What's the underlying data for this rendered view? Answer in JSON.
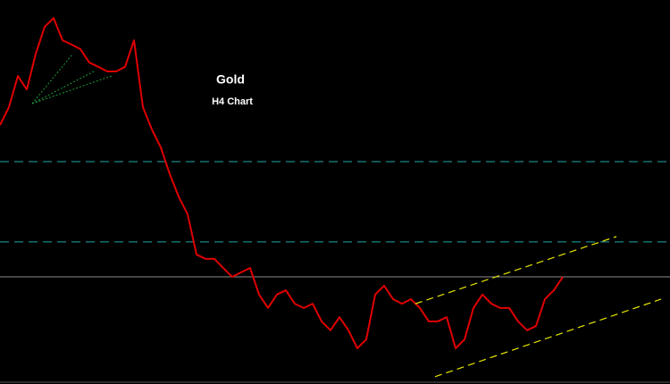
{
  "chart_data": {
    "type": "line",
    "title": "Gold",
    "subtitle": "H4 Chart",
    "color": "#e00000",
    "values": [
      67.4,
      72.1,
      80.2,
      76.7,
      86.0,
      93.0,
      95.3,
      89.5,
      88.4,
      87.2,
      83.7,
      82.6,
      81.4,
      81.4,
      82.6,
      89.5,
      72.1,
      66.3,
      61.6,
      54.7,
      48.8,
      44.2,
      33.7,
      32.6,
      32.6,
      30.2,
      27.9,
      29.1,
      30.2,
      23.3,
      19.8,
      23.3,
      24.4,
      20.9,
      19.8,
      20.9,
      16.3,
      14.0,
      17.4,
      14.0,
      9.3,
      11.6,
      23.3,
      25.6,
      22.1,
      20.9,
      22.1,
      19.8,
      16.3,
      16.3,
      17.4,
      9.3,
      11.6,
      19.8,
      23.3,
      20.9,
      19.8,
      19.8,
      16.3,
      14.0,
      15.1,
      22.1,
      24.4,
      27.9
    ],
    "xlim": [
      0,
      75
    ],
    "ylim": [
      0,
      100
    ],
    "levels": [
      {
        "value": 57.9,
        "color": "#1fa7a7",
        "style": "dashed"
      },
      {
        "value": 37.0,
        "color": "#1fa7a7",
        "style": "dashed"
      },
      {
        "value": 27.9,
        "color": "#8c8c8c",
        "style": "solid"
      }
    ],
    "channels": [
      {
        "x": [
          46.5,
          69.0
        ],
        "values": [
          20.9,
          38.4
        ],
        "color": "#e6e600"
      },
      {
        "x": [
          48.7,
          74.0
        ],
        "values": [
          1.9,
          22.1
        ],
        "color": "#e6e600"
      }
    ]
  }
}
